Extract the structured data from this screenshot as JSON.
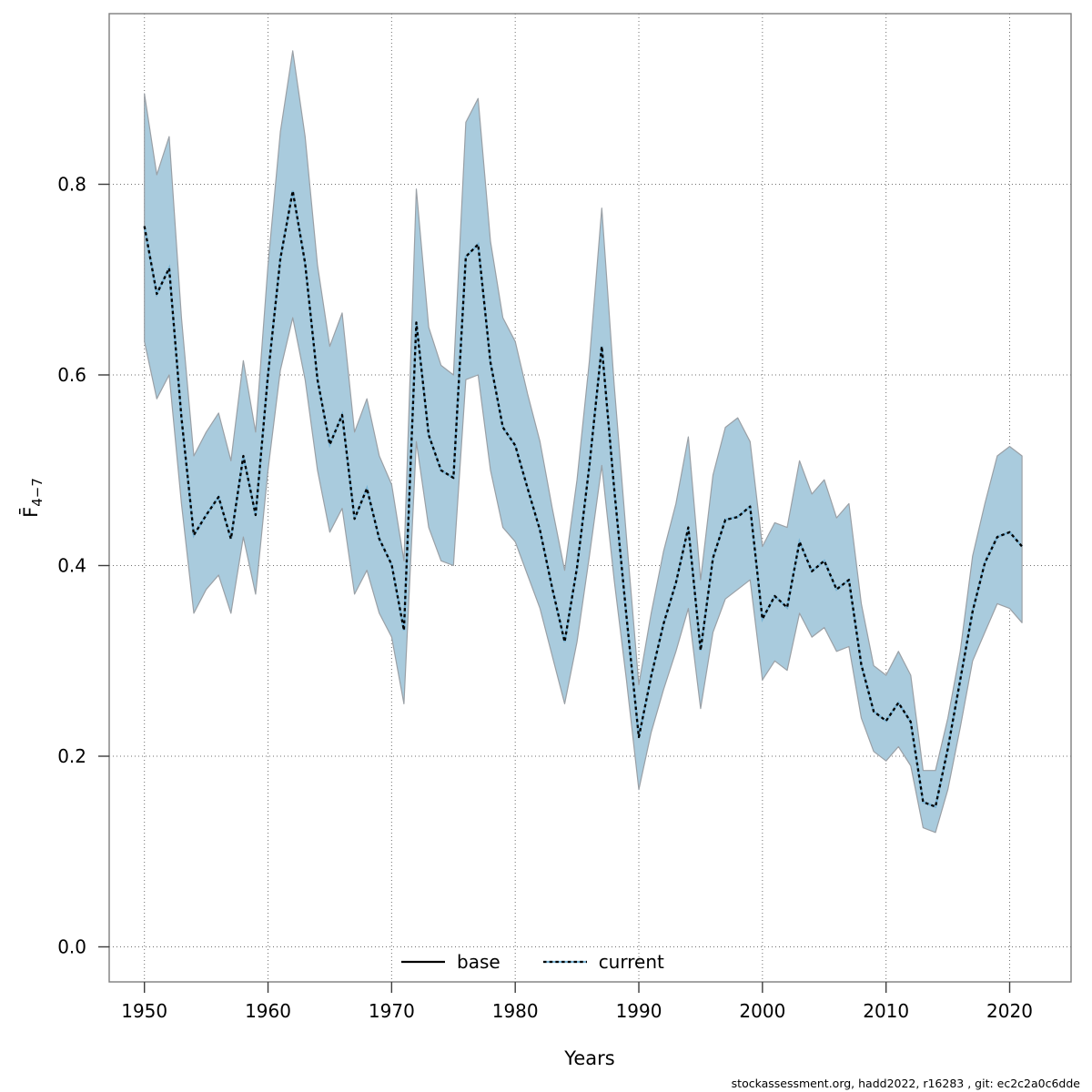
{
  "figure": {
    "xlabel": "Years",
    "ylabel_main": "F̄",
    "ylabel_sub": "4−7",
    "footer": "stockassessment.org, hadd2022, r16283 , git: ec2c2a0c6dde"
  },
  "legend": {
    "base_label": "base",
    "current_label": "current"
  },
  "colors": {
    "band_fill": "#a9cbdd",
    "band_edge": "#9aa0a6",
    "current_blue": "#7ab5d6",
    "line_dash": "#000000",
    "grid": "#6e6e6e",
    "axis": "#7d7d7d",
    "text": "#000000"
  },
  "chart_data": {
    "type": "line",
    "title": "",
    "xlabel": "Years",
    "ylabel": "Fbar 4-7",
    "ylim": [
      0.0,
      0.98
    ],
    "grid": "dotted gray, decades vertical, 0.2 steps horizontal",
    "legend_position": "bottom-center-inside",
    "x_ticks": [
      1950,
      1960,
      1970,
      1980,
      1990,
      2000,
      2010,
      2020
    ],
    "x_tick_labels": [
      "1950",
      "1960",
      "1970",
      "1980",
      "1990",
      "2000",
      "2010",
      "2020"
    ],
    "y_ticks": [
      0.0,
      0.2,
      0.4,
      0.6,
      0.8
    ],
    "y_tick_labels": [
      "0.0",
      "0.2",
      "0.4",
      "0.6",
      "0.8"
    ],
    "x": [
      1950,
      1951,
      1952,
      1953,
      1954,
      1955,
      1956,
      1957,
      1958,
      1959,
      1960,
      1961,
      1962,
      1963,
      1964,
      1965,
      1966,
      1967,
      1968,
      1969,
      1970,
      1971,
      1972,
      1973,
      1974,
      1975,
      1976,
      1977,
      1978,
      1979,
      1980,
      1981,
      1982,
      1983,
      1984,
      1985,
      1986,
      1987,
      1988,
      1989,
      1990,
      1991,
      1992,
      1993,
      1994,
      1995,
      1996,
      1997,
      1998,
      1999,
      2000,
      2001,
      2002,
      2003,
      2004,
      2005,
      2006,
      2007,
      2008,
      2009,
      2010,
      2011,
      2012,
      2013,
      2014,
      2015,
      2016,
      2017,
      2018,
      2019,
      2020,
      2021
    ],
    "series": [
      {
        "name": "current",
        "style": "dotted-black-over-blue",
        "values": [
          0.756,
          0.685,
          0.712,
          0.555,
          0.432,
          0.453,
          0.472,
          0.428,
          0.515,
          0.453,
          0.6,
          0.722,
          0.793,
          0.717,
          0.595,
          0.527,
          0.558,
          0.449,
          0.481,
          0.428,
          0.401,
          0.332,
          0.655,
          0.537,
          0.5,
          0.492,
          0.724,
          0.737,
          0.613,
          0.545,
          0.526,
          0.481,
          0.437,
          0.376,
          0.32,
          0.398,
          0.505,
          0.63,
          0.481,
          0.347,
          0.22,
          0.284,
          0.339,
          0.382,
          0.44,
          0.311,
          0.408,
          0.448,
          0.451,
          0.462,
          0.344,
          0.368,
          0.356,
          0.425,
          0.394,
          0.405,
          0.375,
          0.385,
          0.296,
          0.247,
          0.237,
          0.256,
          0.236,
          0.152,
          0.147,
          0.208,
          0.28,
          0.352,
          0.403,
          0.43,
          0.435,
          0.42
        ]
      },
      {
        "name": "current_ci_upper",
        "style": "band-edge",
        "values": [
          0.895,
          0.81,
          0.85,
          0.66,
          0.515,
          0.54,
          0.56,
          0.51,
          0.615,
          0.54,
          0.715,
          0.855,
          0.94,
          0.85,
          0.715,
          0.63,
          0.665,
          0.54,
          0.575,
          0.515,
          0.485,
          0.405,
          0.795,
          0.65,
          0.61,
          0.6,
          0.865,
          0.89,
          0.74,
          0.66,
          0.635,
          0.58,
          0.53,
          0.46,
          0.395,
          0.49,
          0.615,
          0.775,
          0.59,
          0.43,
          0.275,
          0.35,
          0.415,
          0.465,
          0.535,
          0.385,
          0.495,
          0.545,
          0.555,
          0.53,
          0.42,
          0.445,
          0.44,
          0.51,
          0.475,
          0.49,
          0.45,
          0.465,
          0.36,
          0.295,
          0.285,
          0.31,
          0.285,
          0.185,
          0.185,
          0.24,
          0.31,
          0.41,
          0.465,
          0.515,
          0.525,
          0.515
        ]
      },
      {
        "name": "current_ci_lower",
        "style": "band-edge",
        "values": [
          0.635,
          0.575,
          0.6,
          0.465,
          0.35,
          0.375,
          0.39,
          0.35,
          0.43,
          0.37,
          0.5,
          0.605,
          0.66,
          0.595,
          0.5,
          0.435,
          0.46,
          0.37,
          0.395,
          0.35,
          0.325,
          0.255,
          0.53,
          0.44,
          0.405,
          0.4,
          0.595,
          0.6,
          0.5,
          0.44,
          0.425,
          0.39,
          0.355,
          0.305,
          0.255,
          0.32,
          0.41,
          0.505,
          0.385,
          0.28,
          0.165,
          0.225,
          0.27,
          0.31,
          0.355,
          0.25,
          0.33,
          0.365,
          0.375,
          0.385,
          0.28,
          0.3,
          0.29,
          0.35,
          0.325,
          0.335,
          0.31,
          0.315,
          0.24,
          0.205,
          0.195,
          0.21,
          0.19,
          0.125,
          0.12,
          0.165,
          0.23,
          0.3,
          0.33,
          0.36,
          0.355,
          0.34
        ]
      }
    ]
  }
}
